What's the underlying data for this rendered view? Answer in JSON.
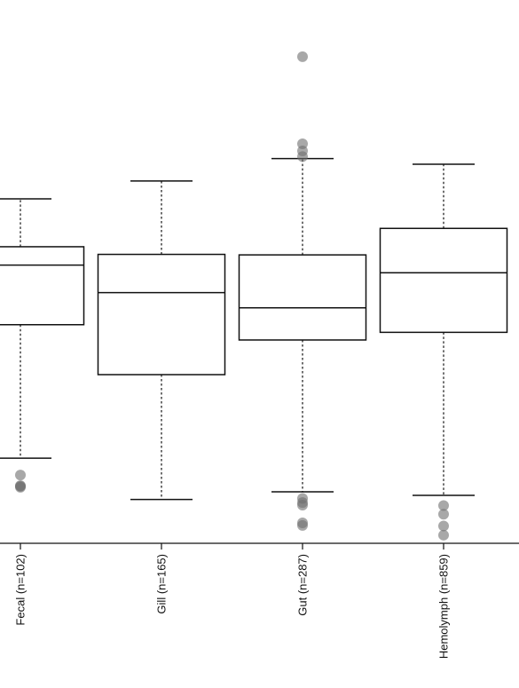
{
  "chart_data": {
    "type": "box",
    "title": "",
    "xlabel": "",
    "ylabel": "",
    "ylim": [
      0,
      100
    ],
    "y_axis_shown": false,
    "grid": false,
    "categories": [
      "Fecal (n=102)",
      "Gill (n=165)",
      "Gut (n=287)",
      "Hemolymph (n=859)"
    ],
    "boxes": [
      {
        "label": "Fecal (n=102)",
        "whisker_low": 16.7,
        "q1": 42.9,
        "median": 54.6,
        "q3": 58.2,
        "whisker_high": 67.6,
        "outliers": [
          13.4,
          11.3,
          11.0,
          11.2
        ]
      },
      {
        "label": "Gill (n=165)",
        "whisker_low": 8.6,
        "q1": 33.1,
        "median": 49.2,
        "q3": 56.7,
        "whisker_high": 71.1,
        "outliers": []
      },
      {
        "label": "Gut (n=287)",
        "whisker_low": 10.1,
        "q1": 39.9,
        "median": 46.2,
        "q3": 56.6,
        "whisker_high": 75.5,
        "outliers": [
          95.5,
          78.4,
          77.0,
          75.9,
          8.8,
          8.0,
          7.5,
          4.0,
          3.5
        ]
      },
      {
        "label": "Hemolymph (n=859)",
        "whisker_low": 9.4,
        "q1": 41.4,
        "median": 53.1,
        "q3": 61.8,
        "whisker_high": 74.4,
        "outliers": [
          7.4,
          5.7,
          3.4,
          1.6
        ]
      }
    ],
    "colors": {
      "box_stroke": "#111111",
      "outlier_fill": "#6e6e6e"
    }
  }
}
